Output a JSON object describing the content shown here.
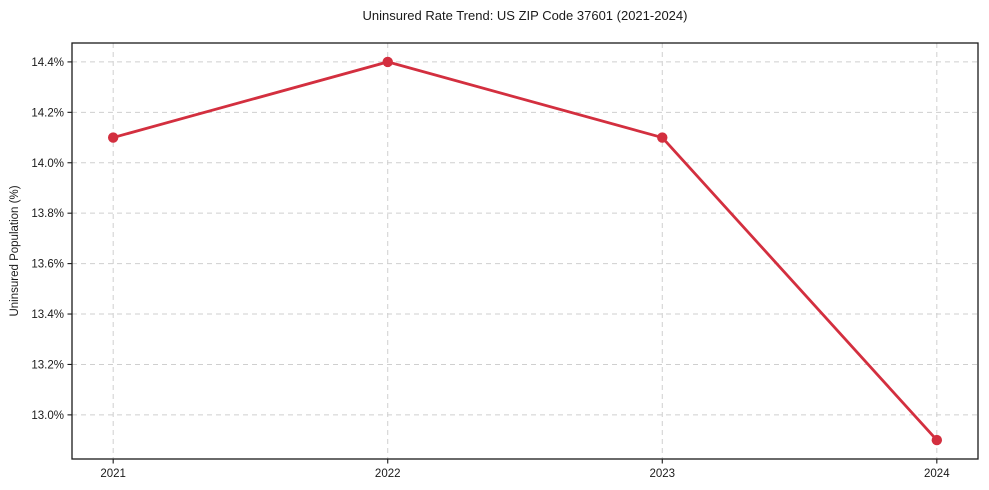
{
  "chart_data": {
    "type": "line",
    "title": "Uninsured Rate Trend: US ZIP Code 37601 (2021-2024)",
    "xlabel": "",
    "ylabel": "Uninsured Population (%)",
    "x": [
      2021,
      2022,
      2023,
      2024
    ],
    "y": [
      14.1,
      14.4,
      14.1,
      12.9
    ],
    "x_tick_labels": [
      "2021",
      "2022",
      "2023",
      "2024"
    ],
    "y_tick_values": [
      13.0,
      13.2,
      13.4,
      13.6,
      13.8,
      14.0,
      14.2,
      14.4
    ],
    "y_tick_labels": [
      "13.0%",
      "13.2%",
      "13.4%",
      "13.6%",
      "13.8%",
      "14.0%",
      "14.2%",
      "14.4%"
    ],
    "xlim": [
      2020.85,
      2024.15
    ],
    "ylim": [
      12.825,
      14.475
    ],
    "grid": true,
    "grid_style": "dashed",
    "legend": "none",
    "colors": {
      "line": "#d32f3f",
      "marker": "#d32f3f",
      "grid": "#cfcfcf",
      "spine": "#1a1a1a",
      "text": "#1a1a1a",
      "background": "#ffffff"
    }
  }
}
